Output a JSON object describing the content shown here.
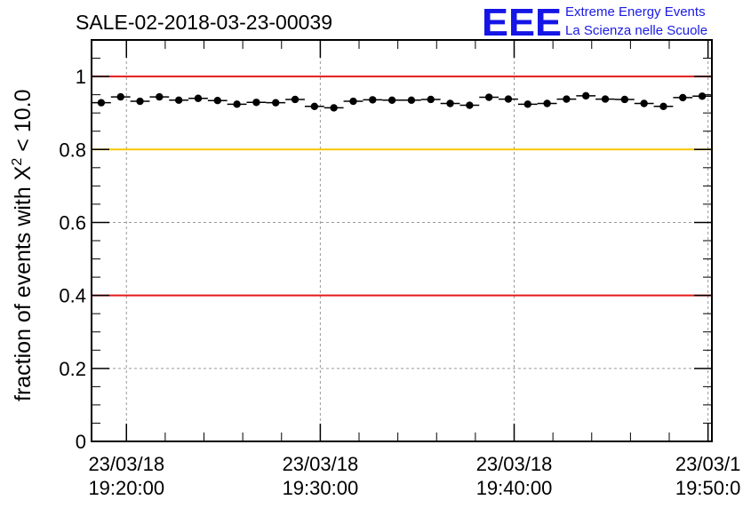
{
  "header": {
    "title": "SALE-02-2018-03-23-00039"
  },
  "logo": {
    "mark": "EEE",
    "line1": "Extreme Energy Events",
    "line2": "La Scienza nelle Scuole",
    "color": "#1515e6"
  },
  "chart_data": {
    "type": "scatter",
    "title": "SALE-02-2018-03-23-00039",
    "ylabel_prefix": "fraction of events with ",
    "ylabel_symbol": "X",
    "ylabel_sup": "2",
    "ylabel_suffix": " < 10.0",
    "ylim": [
      0,
      1.1
    ],
    "xlim_minutes": [
      0,
      32
    ],
    "yticks": [
      0,
      0.2,
      0.4,
      0.6,
      0.8,
      1
    ],
    "ytick_labels": [
      "0",
      "0.2",
      "0.4",
      "0.6",
      "0.8",
      "1"
    ],
    "xticks_minutes": [
      1.8,
      11.8,
      21.8,
      31.8
    ],
    "xtick_labels": [
      {
        "date": "23/03/18",
        "time": "19:20:00"
      },
      {
        "date": "23/03/18",
        "time": "19:30:00"
      },
      {
        "date": "23/03/18",
        "time": "19:40:00"
      },
      {
        "date": "23/03/1",
        "time": "19:50:0"
      }
    ],
    "grid": true,
    "bin_width_minutes": 1,
    "x_minutes": [
      0.5,
      1.5,
      2.5,
      3.5,
      4.5,
      5.5,
      6.5,
      7.5,
      8.5,
      9.5,
      10.5,
      11.5,
      12.5,
      13.5,
      14.5,
      15.5,
      16.5,
      17.5,
      18.5,
      19.5,
      20.5,
      21.5,
      22.5,
      23.5,
      24.5,
      25.5,
      26.5,
      27.5,
      28.5,
      29.5,
      30.5,
      31.5
    ],
    "values": [
      0.928,
      0.944,
      0.932,
      0.944,
      0.935,
      0.94,
      0.934,
      0.924,
      0.929,
      0.928,
      0.937,
      0.918,
      0.914,
      0.932,
      0.936,
      0.935,
      0.935,
      0.937,
      0.926,
      0.921,
      0.943,
      0.938,
      0.924,
      0.926,
      0.938,
      0.947,
      0.938,
      0.937,
      0.926,
      0.918,
      0.942,
      0.946
    ],
    "reference_lines": [
      {
        "y": 1.0,
        "color": "#e31a1a"
      },
      {
        "y": 0.8,
        "color": "#f7c600"
      },
      {
        "y": 0.4,
        "color": "#e31a1a"
      }
    ]
  }
}
